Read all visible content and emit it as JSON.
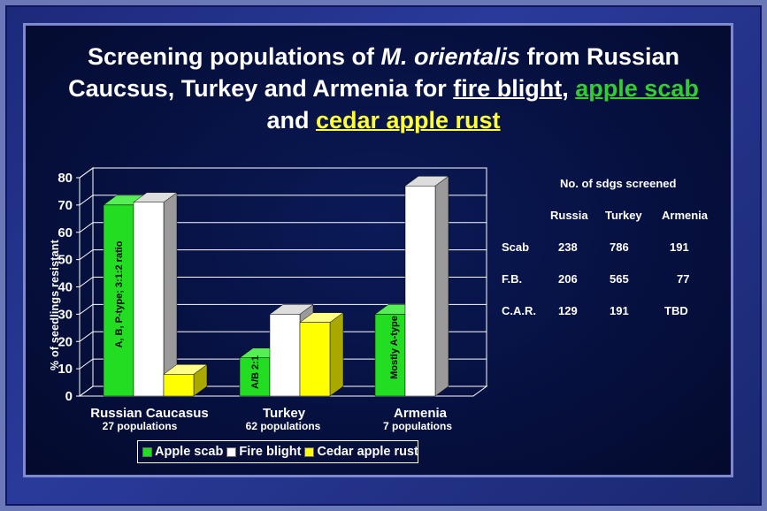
{
  "title": {
    "part1": "Screening populations of ",
    "italic": "M. orientalis",
    "part2": " from Russian Caucsus, Turkey and Armenia for ",
    "fire": "fire blight",
    "sep": ", ",
    "scab": "apple scab",
    "and": " and ",
    "rust": "cedar apple rust"
  },
  "colors": {
    "apple_scab": "#22dd22",
    "fire_blight": "#ffffff",
    "cedar_apple_rust": "#ffff00",
    "background": "#06103e"
  },
  "chart_data": {
    "type": "bar",
    "bar_style": "3d",
    "ylabel": "% of seedlings resistant",
    "ylim": [
      0,
      80
    ],
    "yticks": [
      0,
      10,
      20,
      30,
      40,
      50,
      60,
      70,
      80
    ],
    "grid": true,
    "categories": [
      "Russian Caucasus",
      "Turkey",
      "Armenia"
    ],
    "category_notes": [
      "27 populations",
      "62 populations",
      "7 populations"
    ],
    "series": [
      {
        "name": "Apple scab",
        "values": [
          70,
          14,
          30
        ]
      },
      {
        "name": "Fire blight",
        "values": [
          71,
          30,
          77
        ]
      },
      {
        "name": "Cedar apple rust",
        "values": [
          8,
          27,
          null
        ]
      }
    ],
    "bar_annotations": [
      {
        "text": "A, B, P-type;  3:1:2 ratio",
        "category": 0,
        "series": 0
      },
      {
        "text": "A/B 2:1",
        "category": 1,
        "series": 0
      },
      {
        "text": "Mostly A-type",
        "category": 2,
        "series": 0
      }
    ],
    "legend": [
      "Apple scab",
      "Fire blight",
      "Cedar apple rust"
    ],
    "legend_position": "bottom"
  },
  "table": {
    "caption": "No. of sdgs screened",
    "headers": [
      "Russia",
      "Turkey",
      "Armenia"
    ],
    "rows": [
      {
        "label": "Scab",
        "values": [
          "238",
          "786",
          "191"
        ]
      },
      {
        "label": "F.B.",
        "values": [
          "206",
          "565",
          "77"
        ]
      },
      {
        "label": "C.A.R.",
        "values": [
          "129",
          "191",
          "TBD"
        ]
      }
    ]
  }
}
